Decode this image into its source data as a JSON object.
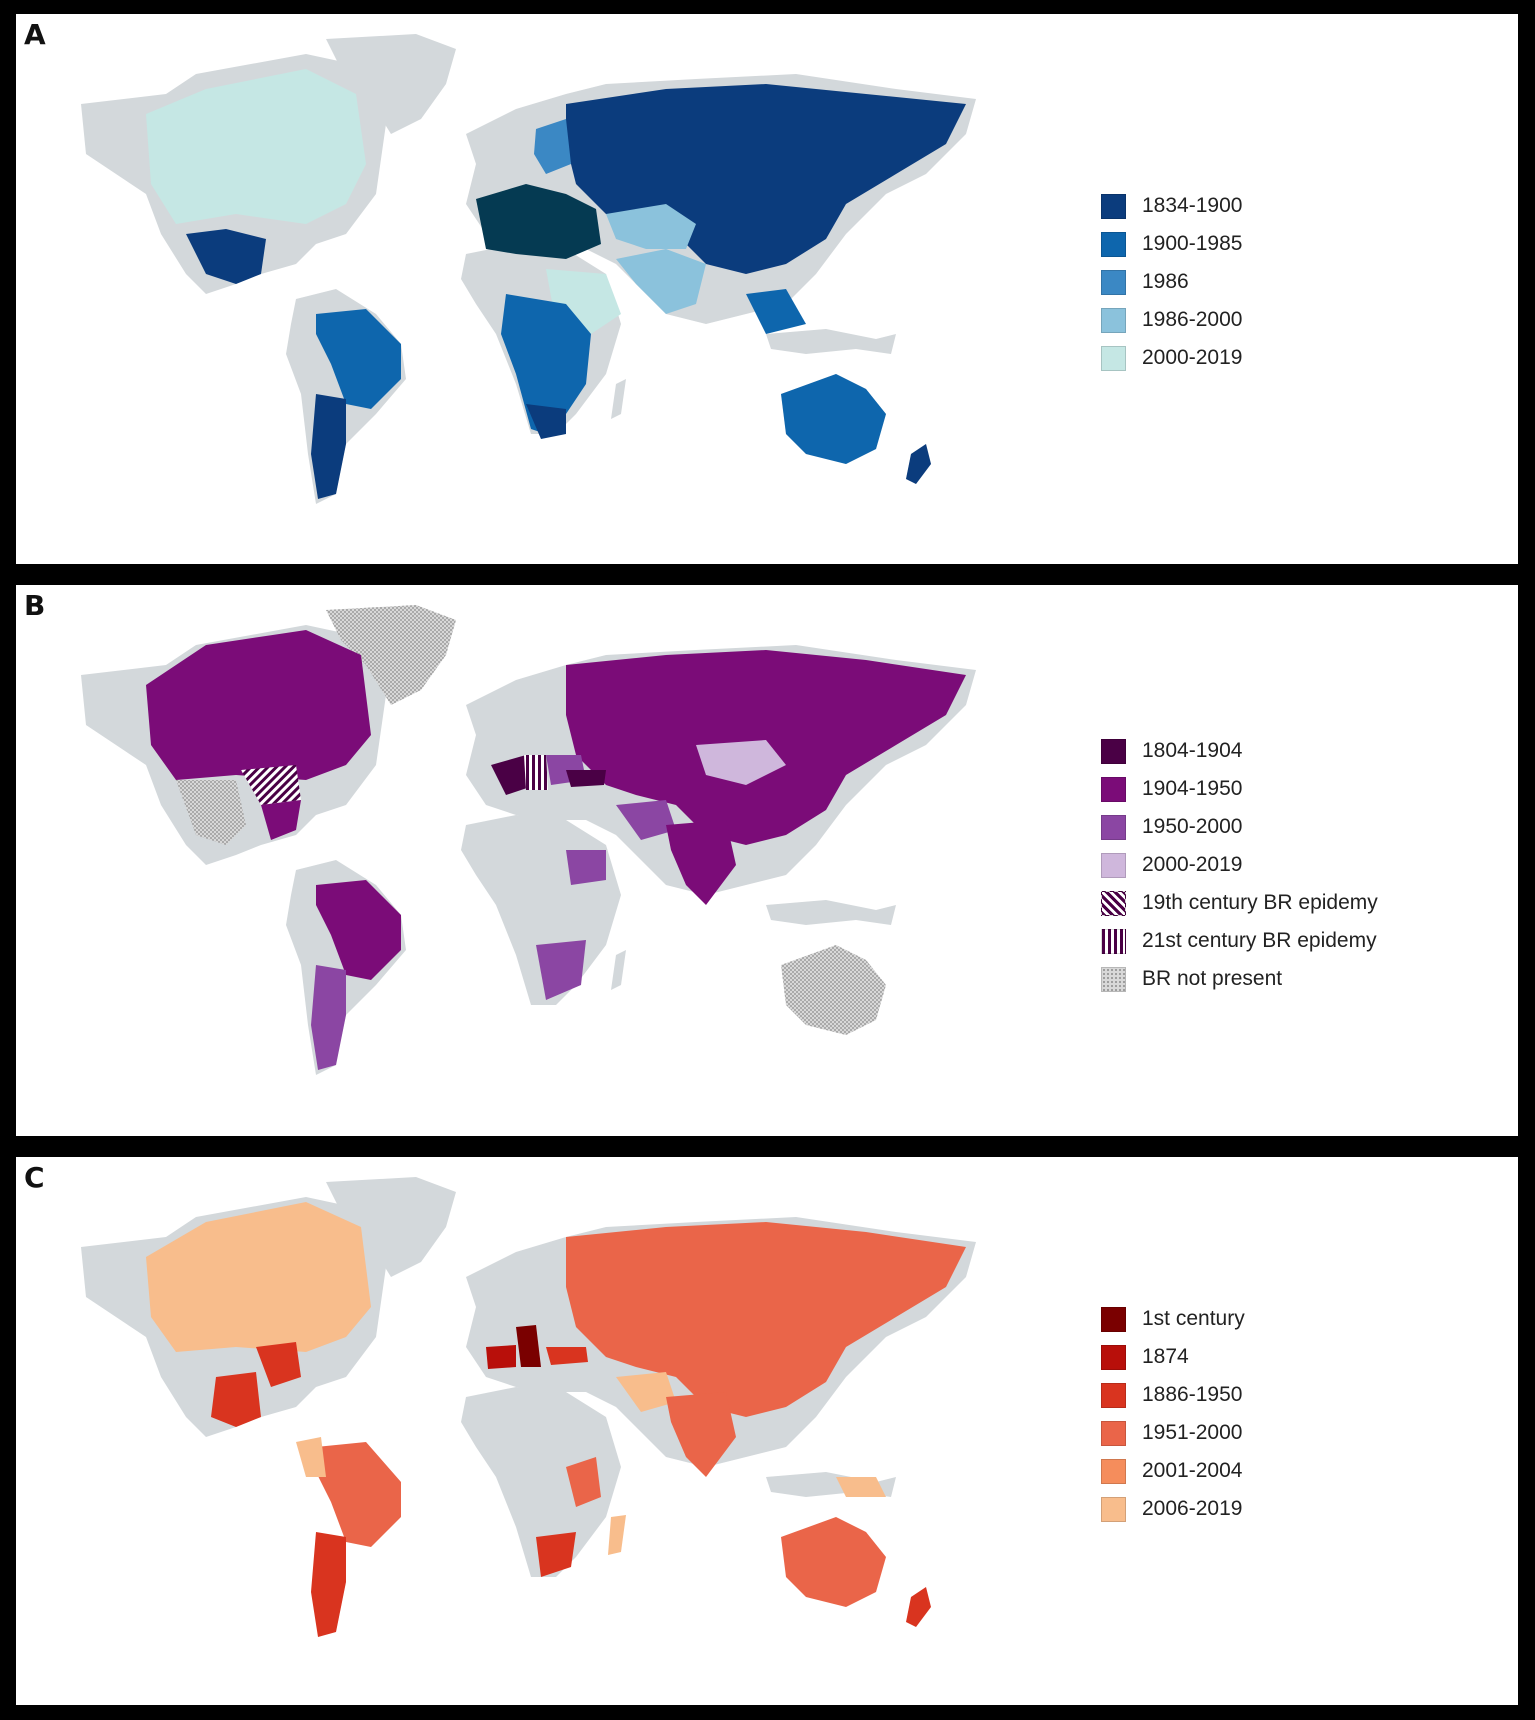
{
  "panels": [
    {
      "letter": "A",
      "legend": [
        {
          "label": "1834-1900",
          "color": "#0b3c7d"
        },
        {
          "label": "1900-1985",
          "color": "#0e66ad"
        },
        {
          "label": "1986",
          "color": "#3b88c4"
        },
        {
          "label": "1986-2000",
          "color": "#8bc2dc"
        },
        {
          "label": "2000-2019",
          "color": "#c5e7e4"
        }
      ],
      "special_colors": {
        "europe_dark": "#053a52",
        "base_land": "#d3d8db"
      }
    },
    {
      "letter": "B",
      "legend": [
        {
          "label": "1804-1904",
          "color": "#4a0045"
        },
        {
          "label": "1904-1950",
          "color": "#7b0c78"
        },
        {
          "label": "1950-2000",
          "color": "#8b46a3"
        },
        {
          "label": "2000-2019",
          "color": "#cfb7dc"
        },
        {
          "label": "19th century BR epidemy",
          "color": "#4a0045",
          "pattern": "diagonal-stripes"
        },
        {
          "label": "21st century BR epidemy",
          "color": "#4a0045",
          "pattern": "vertical-stripes"
        },
        {
          "label": "BR not present",
          "color": "#b8b8b8",
          "pattern": "dots"
        }
      ]
    },
    {
      "letter": "C",
      "legend": [
        {
          "label": "1st century",
          "color": "#7a0000"
        },
        {
          "label": "1874",
          "color": "#b80f0a"
        },
        {
          "label": "1886-1950",
          "color": "#d9341f"
        },
        {
          "label": "1951-2000",
          "color": "#ea6549"
        },
        {
          "label": "2001-2004",
          "color": "#f58d5c"
        },
        {
          "label": "2006-2019",
          "color": "#f8bd8c"
        }
      ]
    }
  ]
}
